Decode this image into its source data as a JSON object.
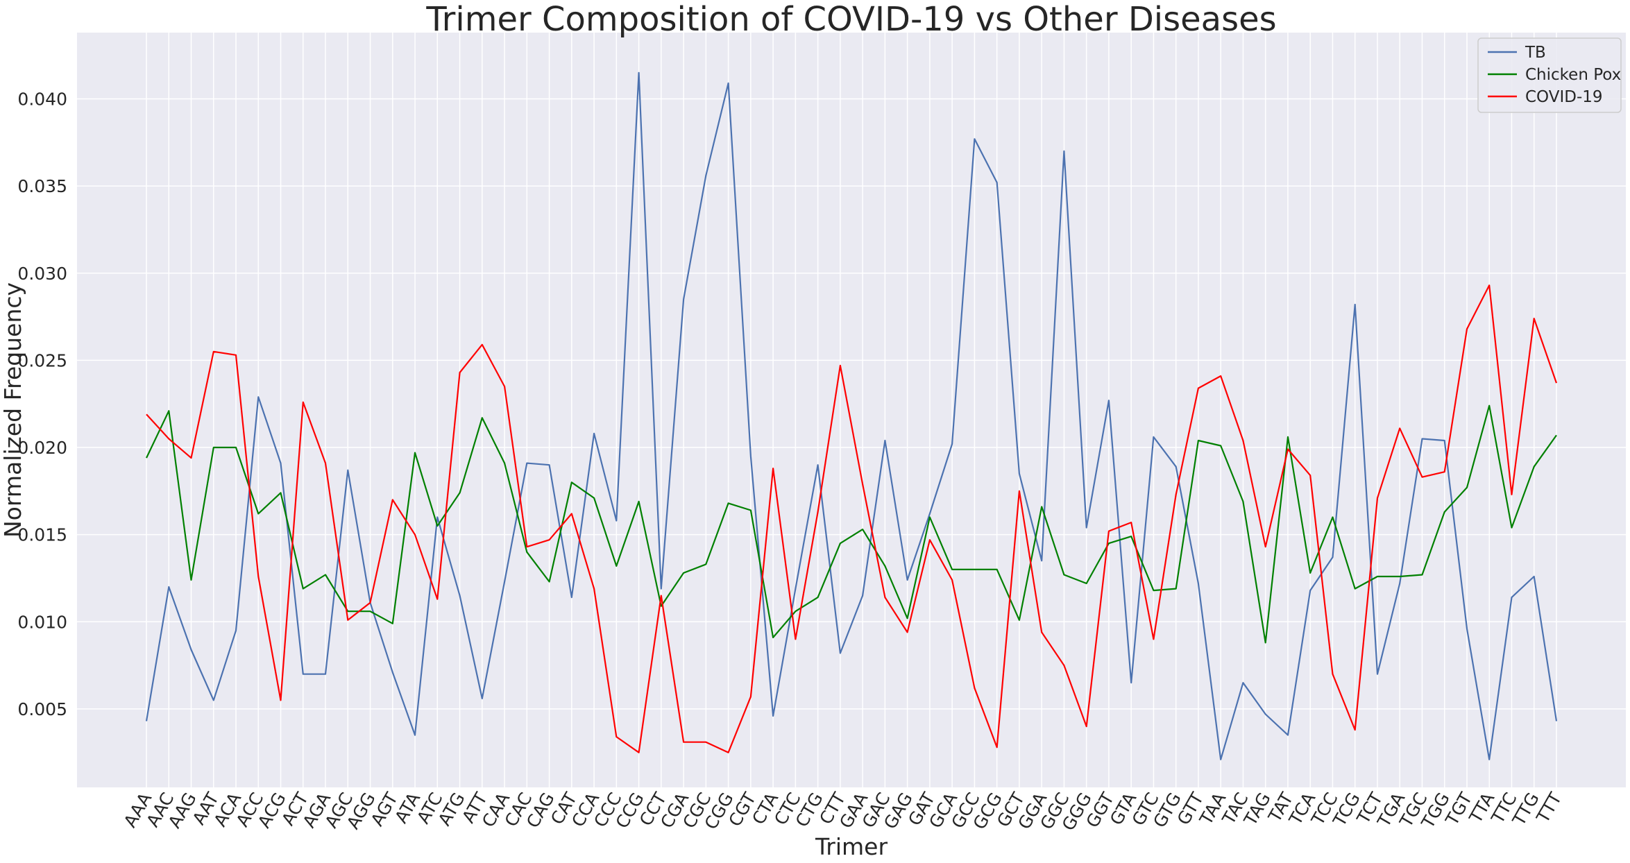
{
  "chart_data": {
    "type": "line",
    "title": "Trimer Composition of COVID-19 vs Other Diseases",
    "xlabel": "Trimer",
    "ylabel": "Normalized Frequency",
    "ylim": [
      0.0005,
      0.0438
    ],
    "yticks": [
      "0.005",
      "0.010",
      "0.015",
      "0.020",
      "0.025",
      "0.030",
      "0.035",
      "0.040"
    ],
    "grid": true,
    "legend_position": "top-right",
    "categories": [
      "AAA",
      "AAC",
      "AAG",
      "AAT",
      "ACA",
      "ACC",
      "ACG",
      "ACT",
      "AGA",
      "AGC",
      "AGG",
      "AGT",
      "ATA",
      "ATC",
      "ATG",
      "ATT",
      "CAA",
      "CAC",
      "CAG",
      "CAT",
      "CCA",
      "CCC",
      "CCG",
      "CCT",
      "CGA",
      "CGC",
      "CGG",
      "CGT",
      "CTA",
      "CTC",
      "CTG",
      "CTT",
      "GAA",
      "GAC",
      "GAG",
      "GAT",
      "GCA",
      "GCC",
      "GCG",
      "GCT",
      "GGA",
      "GGC",
      "GGG",
      "GGT",
      "GTA",
      "GTC",
      "GTG",
      "GTT",
      "TAA",
      "TAC",
      "TAG",
      "TAT",
      "TCA",
      "TCC",
      "TCG",
      "TCT",
      "TGA",
      "TGC",
      "TGG",
      "TGT",
      "TTA",
      "TTC",
      "TTG",
      "TTT"
    ],
    "series": [
      {
        "name": "TB",
        "color": "#4c72b0",
        "values": [
          0.0043,
          0.012,
          0.0084,
          0.0055,
          0.0095,
          0.0229,
          0.0191,
          0.007,
          0.007,
          0.0187,
          0.0111,
          0.0071,
          0.0035,
          0.016,
          0.0115,
          0.0056,
          0.0123,
          0.0191,
          0.019,
          0.0114,
          0.0208,
          0.0158,
          0.0415,
          0.0119,
          0.0285,
          0.0356,
          0.0409,
          0.0195,
          0.0046,
          0.0119,
          0.019,
          0.0082,
          0.0115,
          0.0204,
          0.0124,
          0.0162,
          0.0202,
          0.0377,
          0.0352,
          0.0185,
          0.0135,
          0.037,
          0.0154,
          0.0227,
          0.0065,
          0.0206,
          0.0189,
          0.0122,
          0.0021,
          0.0065,
          0.0047,
          0.0035,
          0.0118,
          0.0137,
          0.0282,
          0.007,
          0.0122,
          0.0205,
          0.0204,
          0.0096,
          0.0021,
          0.0114,
          0.0126,
          0.0043
        ]
      },
      {
        "name": "Chicken Pox",
        "color": "#008000",
        "values": [
          0.0194,
          0.0221,
          0.0124,
          0.02,
          0.02,
          0.0162,
          0.0174,
          0.0119,
          0.0127,
          0.0106,
          0.0106,
          0.0099,
          0.0197,
          0.0155,
          0.0174,
          0.0217,
          0.0191,
          0.014,
          0.0123,
          0.018,
          0.0171,
          0.0132,
          0.0169,
          0.0109,
          0.0128,
          0.0133,
          0.0168,
          0.0164,
          0.0091,
          0.0106,
          0.0114,
          0.0145,
          0.0153,
          0.0132,
          0.0102,
          0.016,
          0.013,
          0.013,
          0.013,
          0.0101,
          0.0166,
          0.0127,
          0.0122,
          0.0145,
          0.0149,
          0.0118,
          0.0119,
          0.0204,
          0.0201,
          0.0169,
          0.0088,
          0.0206,
          0.0128,
          0.016,
          0.0119,
          0.0126,
          0.0126,
          0.0127,
          0.0163,
          0.0177,
          0.0224,
          0.0154,
          0.0189,
          0.0207
        ]
      },
      {
        "name": "COVID-19",
        "color": "#ff0000",
        "values": [
          0.0219,
          0.0205,
          0.0194,
          0.0255,
          0.0253,
          0.0126,
          0.0055,
          0.0226,
          0.0191,
          0.0101,
          0.0111,
          0.017,
          0.015,
          0.0113,
          0.0243,
          0.0259,
          0.0235,
          0.0143,
          0.0147,
          0.0162,
          0.0119,
          0.0034,
          0.0025,
          0.0115,
          0.0031,
          0.0031,
          0.0025,
          0.0057,
          0.0188,
          0.009,
          0.0163,
          0.0247,
          0.0179,
          0.0114,
          0.0094,
          0.0147,
          0.0124,
          0.0062,
          0.0028,
          0.0175,
          0.0094,
          0.0075,
          0.004,
          0.0152,
          0.0157,
          0.009,
          0.0173,
          0.0234,
          0.0241,
          0.0204,
          0.0143,
          0.0199,
          0.0184,
          0.007,
          0.0038,
          0.0171,
          0.0211,
          0.0183,
          0.0186,
          0.0268,
          0.0293,
          0.0173,
          0.0274,
          0.0237
        ]
      }
    ]
  }
}
